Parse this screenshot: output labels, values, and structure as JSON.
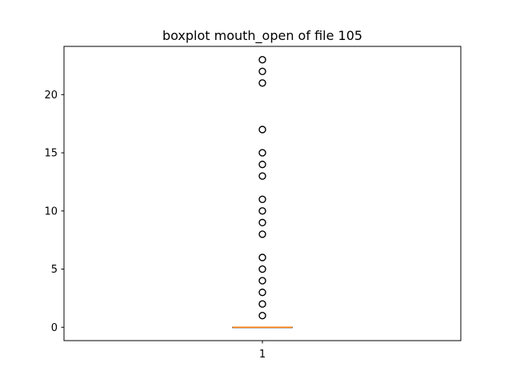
{
  "chart_data": {
    "type": "boxplot",
    "title": "boxplot mouth_open of file 105",
    "xlabel": "",
    "ylabel": "",
    "categories": [
      "1"
    ],
    "ylim": [
      -1.15,
      24.15
    ],
    "yticks": [
      0,
      5,
      10,
      15,
      20
    ],
    "grid": false,
    "series": [
      {
        "box": {
          "q1": 0,
          "median": 0,
          "q3": 0,
          "whisker_low": 0,
          "whisker_high": 0
        },
        "outliers": [
          1,
          2,
          3,
          4,
          5,
          6,
          8,
          9,
          10,
          11,
          13,
          14,
          15,
          17,
          21,
          22,
          23
        ]
      }
    ],
    "colors": {
      "median": "#ff7f0e",
      "box": "#000000",
      "outlier_edge": "#000000"
    }
  }
}
